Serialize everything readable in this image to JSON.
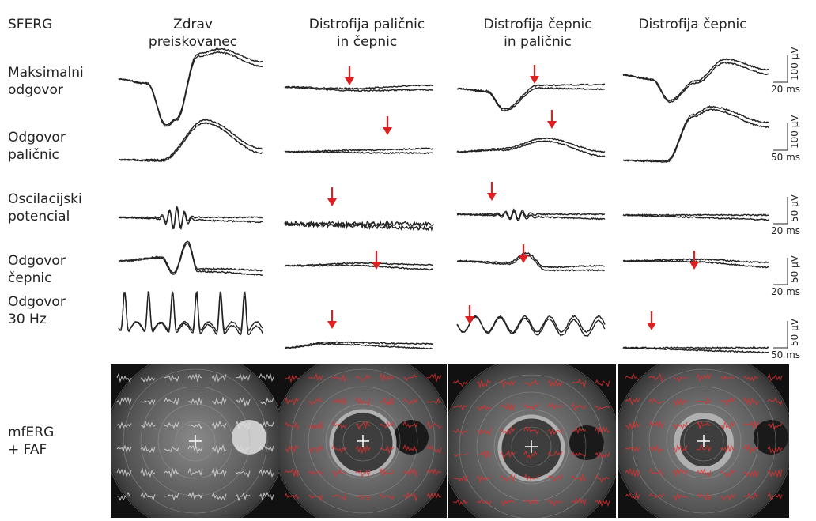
{
  "header": {
    "title": "SFERG",
    "columns": [
      {
        "lines": [
          "Zdrav",
          "preiskovanec"
        ]
      },
      {
        "lines": [
          "Distrofija paličnic",
          "in čepnic"
        ]
      },
      {
        "lines": [
          "Distrofija čepnic",
          "in paličnic"
        ]
      },
      {
        "lines": [
          "Distrofija čepnic"
        ]
      }
    ]
  },
  "rows": [
    {
      "label": [
        "Maksimalni",
        "odgovor"
      ],
      "scale": [
        "100 µV",
        "20 ms"
      ]
    },
    {
      "label": [
        "Odgovor",
        "paličnic"
      ],
      "scale": [
        "100 µV",
        "50 ms"
      ]
    },
    {
      "label": [
        "Oscilacijski",
        "potencial"
      ],
      "scale": [
        "50 µV",
        "20 ms"
      ]
    },
    {
      "label": [
        "Odgovor",
        "čepnic"
      ],
      "scale": [
        "50 µV",
        "20 ms"
      ]
    },
    {
      "label": [
        "Odgovor",
        "30 Hz"
      ],
      "scale": [
        "50 µV",
        "50 ms"
      ]
    }
  ],
  "mferg": {
    "label": [
      "mfERG",
      "+ FAF"
    ]
  }
}
